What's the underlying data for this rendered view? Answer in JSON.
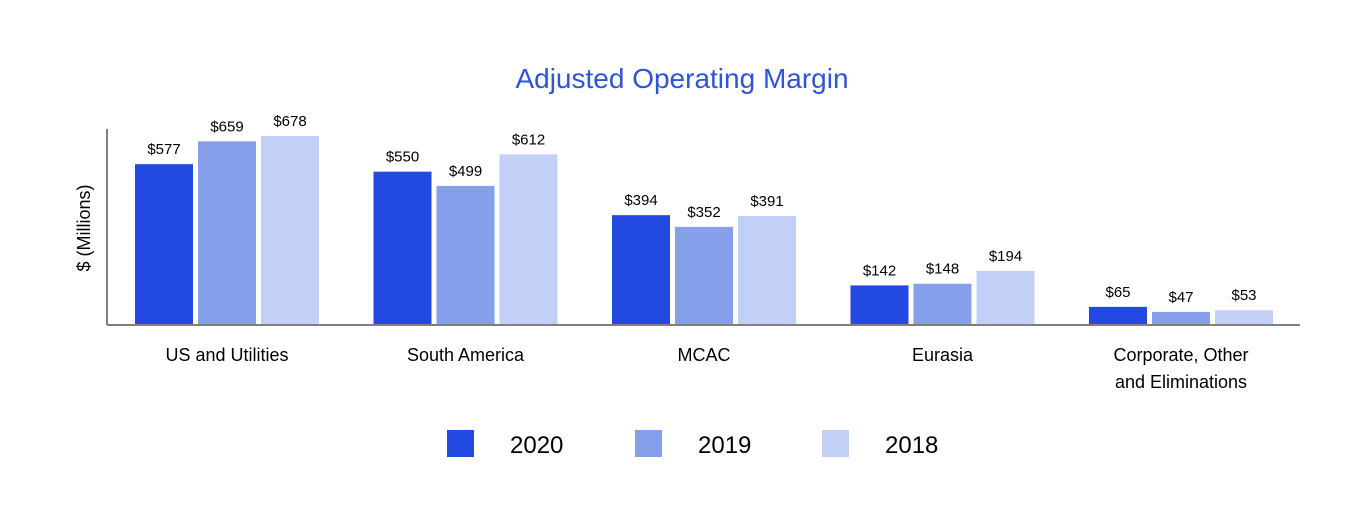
{
  "chart_data": {
    "type": "bar",
    "title": "Adjusted Operating Margin",
    "ylabel": "$ (Millions)",
    "xlabel": "",
    "categories": [
      [
        "US and Utilities"
      ],
      [
        "South America"
      ],
      [
        "MCAC"
      ],
      [
        "Eurasia"
      ],
      [
        "Corporate, Other",
        "and Eliminations"
      ]
    ],
    "series": [
      {
        "name": "2020",
        "color": "#2249e0",
        "values": [
          577,
          550,
          394,
          142,
          65
        ],
        "labels": [
          "$577",
          "$550",
          "$394",
          "$142",
          "$65"
        ]
      },
      {
        "name": "2019",
        "color": "#859fea",
        "values": [
          659,
          499,
          352,
          148,
          47
        ],
        "labels": [
          "$659",
          "$499",
          "$352",
          "$148",
          "$47"
        ]
      },
      {
        "name": "2018",
        "color": "#c2d0f8",
        "values": [
          678,
          612,
          391,
          194,
          53
        ],
        "labels": [
          "$678",
          "$612",
          "$391",
          "$194",
          "$53"
        ]
      }
    ],
    "ylim": [
      0,
      700
    ],
    "grid": false,
    "legend": "bottom",
    "title_color": "#2f54d6",
    "axis_color": "#7f7f7f"
  }
}
